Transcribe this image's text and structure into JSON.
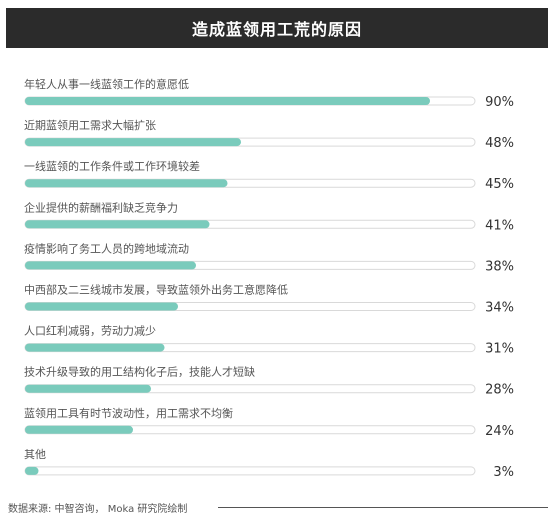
{
  "chart_data": {
    "type": "bar",
    "orientation": "horizontal",
    "title": "造成蓝领用工荒的原因",
    "categories": [
      "年轻人从事一线蓝领工作的意愿低",
      "近期蓝领用工需求大幅扩张",
      "一线蓝领的工作条件或工作环境较差",
      "企业提供的薪酬福利缺乏竞争力",
      "疫情影响了务工人员的跨地域流动",
      "中西部及二三线城市发展，导致蓝领外出务工意愿降低",
      "人口红利减弱，劳动力减少",
      "技术升级导致的用工结构化子后，技能人才短缺",
      "蓝领用工具有时节波动性，用工需求不均衡",
      "其他"
    ],
    "values": [
      90,
      48,
      45,
      41,
      38,
      34,
      31,
      28,
      24,
      3
    ],
    "value_labels": [
      "90%",
      "48%",
      "45%",
      "41%",
      "38%",
      "34%",
      "31%",
      "28%",
      "24%",
      "3%"
    ],
    "xlim": [
      0,
      100
    ],
    "bar_color": "#7acbbc",
    "grid": false
  },
  "footer": {
    "source": "数据来源: 中智咨询，  Moka 研究院绘制"
  }
}
